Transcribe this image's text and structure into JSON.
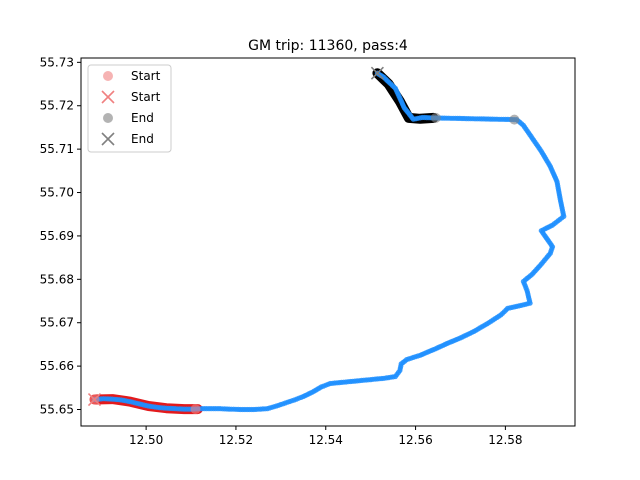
{
  "chart_data": {
    "type": "scatter",
    "title": "GM trip: 11360, pass:4",
    "xlabel": "",
    "ylabel": "",
    "xlim": [
      12.4855,
      12.5955
    ],
    "ylim": [
      55.6462,
      55.731
    ],
    "xticks": [
      12.5,
      12.52,
      12.54,
      12.56,
      12.58
    ],
    "xtick_labels": [
      "12.50",
      "12.52",
      "12.54",
      "12.56",
      "12.58"
    ],
    "yticks": [
      55.65,
      55.66,
      55.67,
      55.68,
      55.69,
      55.7,
      55.71,
      55.72,
      55.73
    ],
    "ytick_labels": [
      "55.65",
      "55.66",
      "55.67",
      "55.68",
      "55.69",
      "55.70",
      "55.71",
      "55.72",
      "55.73"
    ],
    "grid": false,
    "legend_position": "upper-left",
    "legend": [
      {
        "label": "Start",
        "marker": "circle",
        "color": "#f08080"
      },
      {
        "label": "Start",
        "marker": "x",
        "color": "#f08080"
      },
      {
        "label": "End",
        "marker": "circle",
        "color": "#808080"
      },
      {
        "label": "End",
        "marker": "x",
        "color": "#808080"
      }
    ],
    "colors": {
      "gps_points": "#1f8fff",
      "start_segment": "#e31a1c",
      "end_segment": "#000000",
      "start_marker": "#f08080",
      "end_marker": "#808080"
    },
    "series": [
      {
        "role": "gps-points",
        "points": [
          [
            12.4885,
            55.6523
          ],
          [
            12.4905,
            55.6525
          ],
          [
            12.4925,
            55.6524
          ],
          [
            12.4945,
            55.6522
          ],
          [
            12.4965,
            55.6518
          ],
          [
            12.4985,
            55.6513
          ],
          [
            12.5005,
            55.6508
          ],
          [
            12.5025,
            55.6505
          ],
          [
            12.5045,
            55.6503
          ],
          [
            12.5065,
            55.6502
          ],
          [
            12.5085,
            55.6501
          ],
          [
            12.5105,
            55.6501
          ],
          [
            12.5125,
            55.6502
          ],
          [
            12.5145,
            55.6502
          ],
          [
            12.5165,
            55.6502
          ],
          [
            12.5185,
            55.6501
          ],
          [
            12.521,
            55.65
          ],
          [
            12.524,
            55.65
          ],
          [
            12.527,
            55.6502
          ],
          [
            12.529,
            55.6508
          ],
          [
            12.531,
            55.6515
          ],
          [
            12.533,
            55.6522
          ],
          [
            12.535,
            55.653
          ],
          [
            12.537,
            55.654
          ],
          [
            12.539,
            55.6552
          ],
          [
            12.541,
            55.656
          ],
          [
            12.544,
            55.6563
          ],
          [
            12.547,
            55.6566
          ],
          [
            12.55,
            55.6569
          ],
          [
            12.553,
            55.6572
          ],
          [
            12.5555,
            55.6576
          ],
          [
            12.5565,
            55.659
          ],
          [
            12.5568,
            55.6605
          ],
          [
            12.558,
            55.6615
          ],
          [
            12.561,
            55.6625
          ],
          [
            12.564,
            55.6638
          ],
          [
            12.567,
            55.6652
          ],
          [
            12.57,
            55.6665
          ],
          [
            12.573,
            55.668
          ],
          [
            12.576,
            55.6698
          ],
          [
            12.579,
            55.6718
          ],
          [
            12.5805,
            55.6733
          ],
          [
            12.5835,
            55.674
          ],
          [
            12.5855,
            55.6745
          ],
          [
            12.5848,
            55.6775
          ],
          [
            12.584,
            55.6795
          ],
          [
            12.586,
            55.6812
          ],
          [
            12.588,
            55.6835
          ],
          [
            12.59,
            55.686
          ],
          [
            12.5905,
            55.6875
          ],
          [
            12.588,
            55.6912
          ],
          [
            12.5905,
            55.6925
          ],
          [
            12.593,
            55.6945
          ],
          [
            12.5922,
            55.6985
          ],
          [
            12.5915,
            55.7025
          ],
          [
            12.59,
            55.706
          ],
          [
            12.588,
            55.7095
          ],
          [
            12.586,
            55.7125
          ],
          [
            12.584,
            55.7155
          ],
          [
            12.5825,
            55.7168
          ],
          [
            12.564,
            55.7172
          ],
          [
            12.5615,
            55.7173
          ],
          [
            12.5595,
            55.7169
          ],
          [
            12.5575,
            55.7195
          ],
          [
            12.5555,
            55.724
          ],
          [
            12.553,
            55.7265
          ],
          [
            12.5515,
            55.7275
          ]
        ]
      },
      {
        "role": "start-segment",
        "points": [
          [
            12.4885,
            55.6523
          ],
          [
            12.4925,
            55.6524
          ],
          [
            12.4965,
            55.6518
          ],
          [
            12.5005,
            55.6508
          ],
          [
            12.5045,
            55.6503
          ],
          [
            12.5085,
            55.6501
          ],
          [
            12.5115,
            55.6501
          ]
        ]
      },
      {
        "role": "end-segment",
        "points": [
          [
            12.5515,
            55.7275
          ],
          [
            12.554,
            55.725
          ],
          [
            12.5565,
            55.721
          ],
          [
            12.5585,
            55.7172
          ],
          [
            12.561,
            55.717
          ],
          [
            12.564,
            55.7172
          ]
        ]
      }
    ],
    "markers": [
      {
        "label": "Start",
        "marker": "circle",
        "x": 12.4885,
        "y": 55.6523,
        "color": "#f08080"
      },
      {
        "label": "Start",
        "marker": "x",
        "x": 12.4885,
        "y": 55.6523,
        "color": "#f08080"
      },
      {
        "label": "Start",
        "marker": "circle",
        "x": 12.511,
        "y": 55.6501,
        "color": "#f08080"
      },
      {
        "label": "End",
        "marker": "circle",
        "x": 12.5645,
        "y": 55.7172,
        "color": "#808080"
      },
      {
        "label": "End",
        "marker": "circle",
        "x": 12.582,
        "y": 55.7168,
        "color": "#808080"
      },
      {
        "label": "End",
        "marker": "x",
        "x": 12.5515,
        "y": 55.7275,
        "color": "#808080"
      }
    ]
  }
}
